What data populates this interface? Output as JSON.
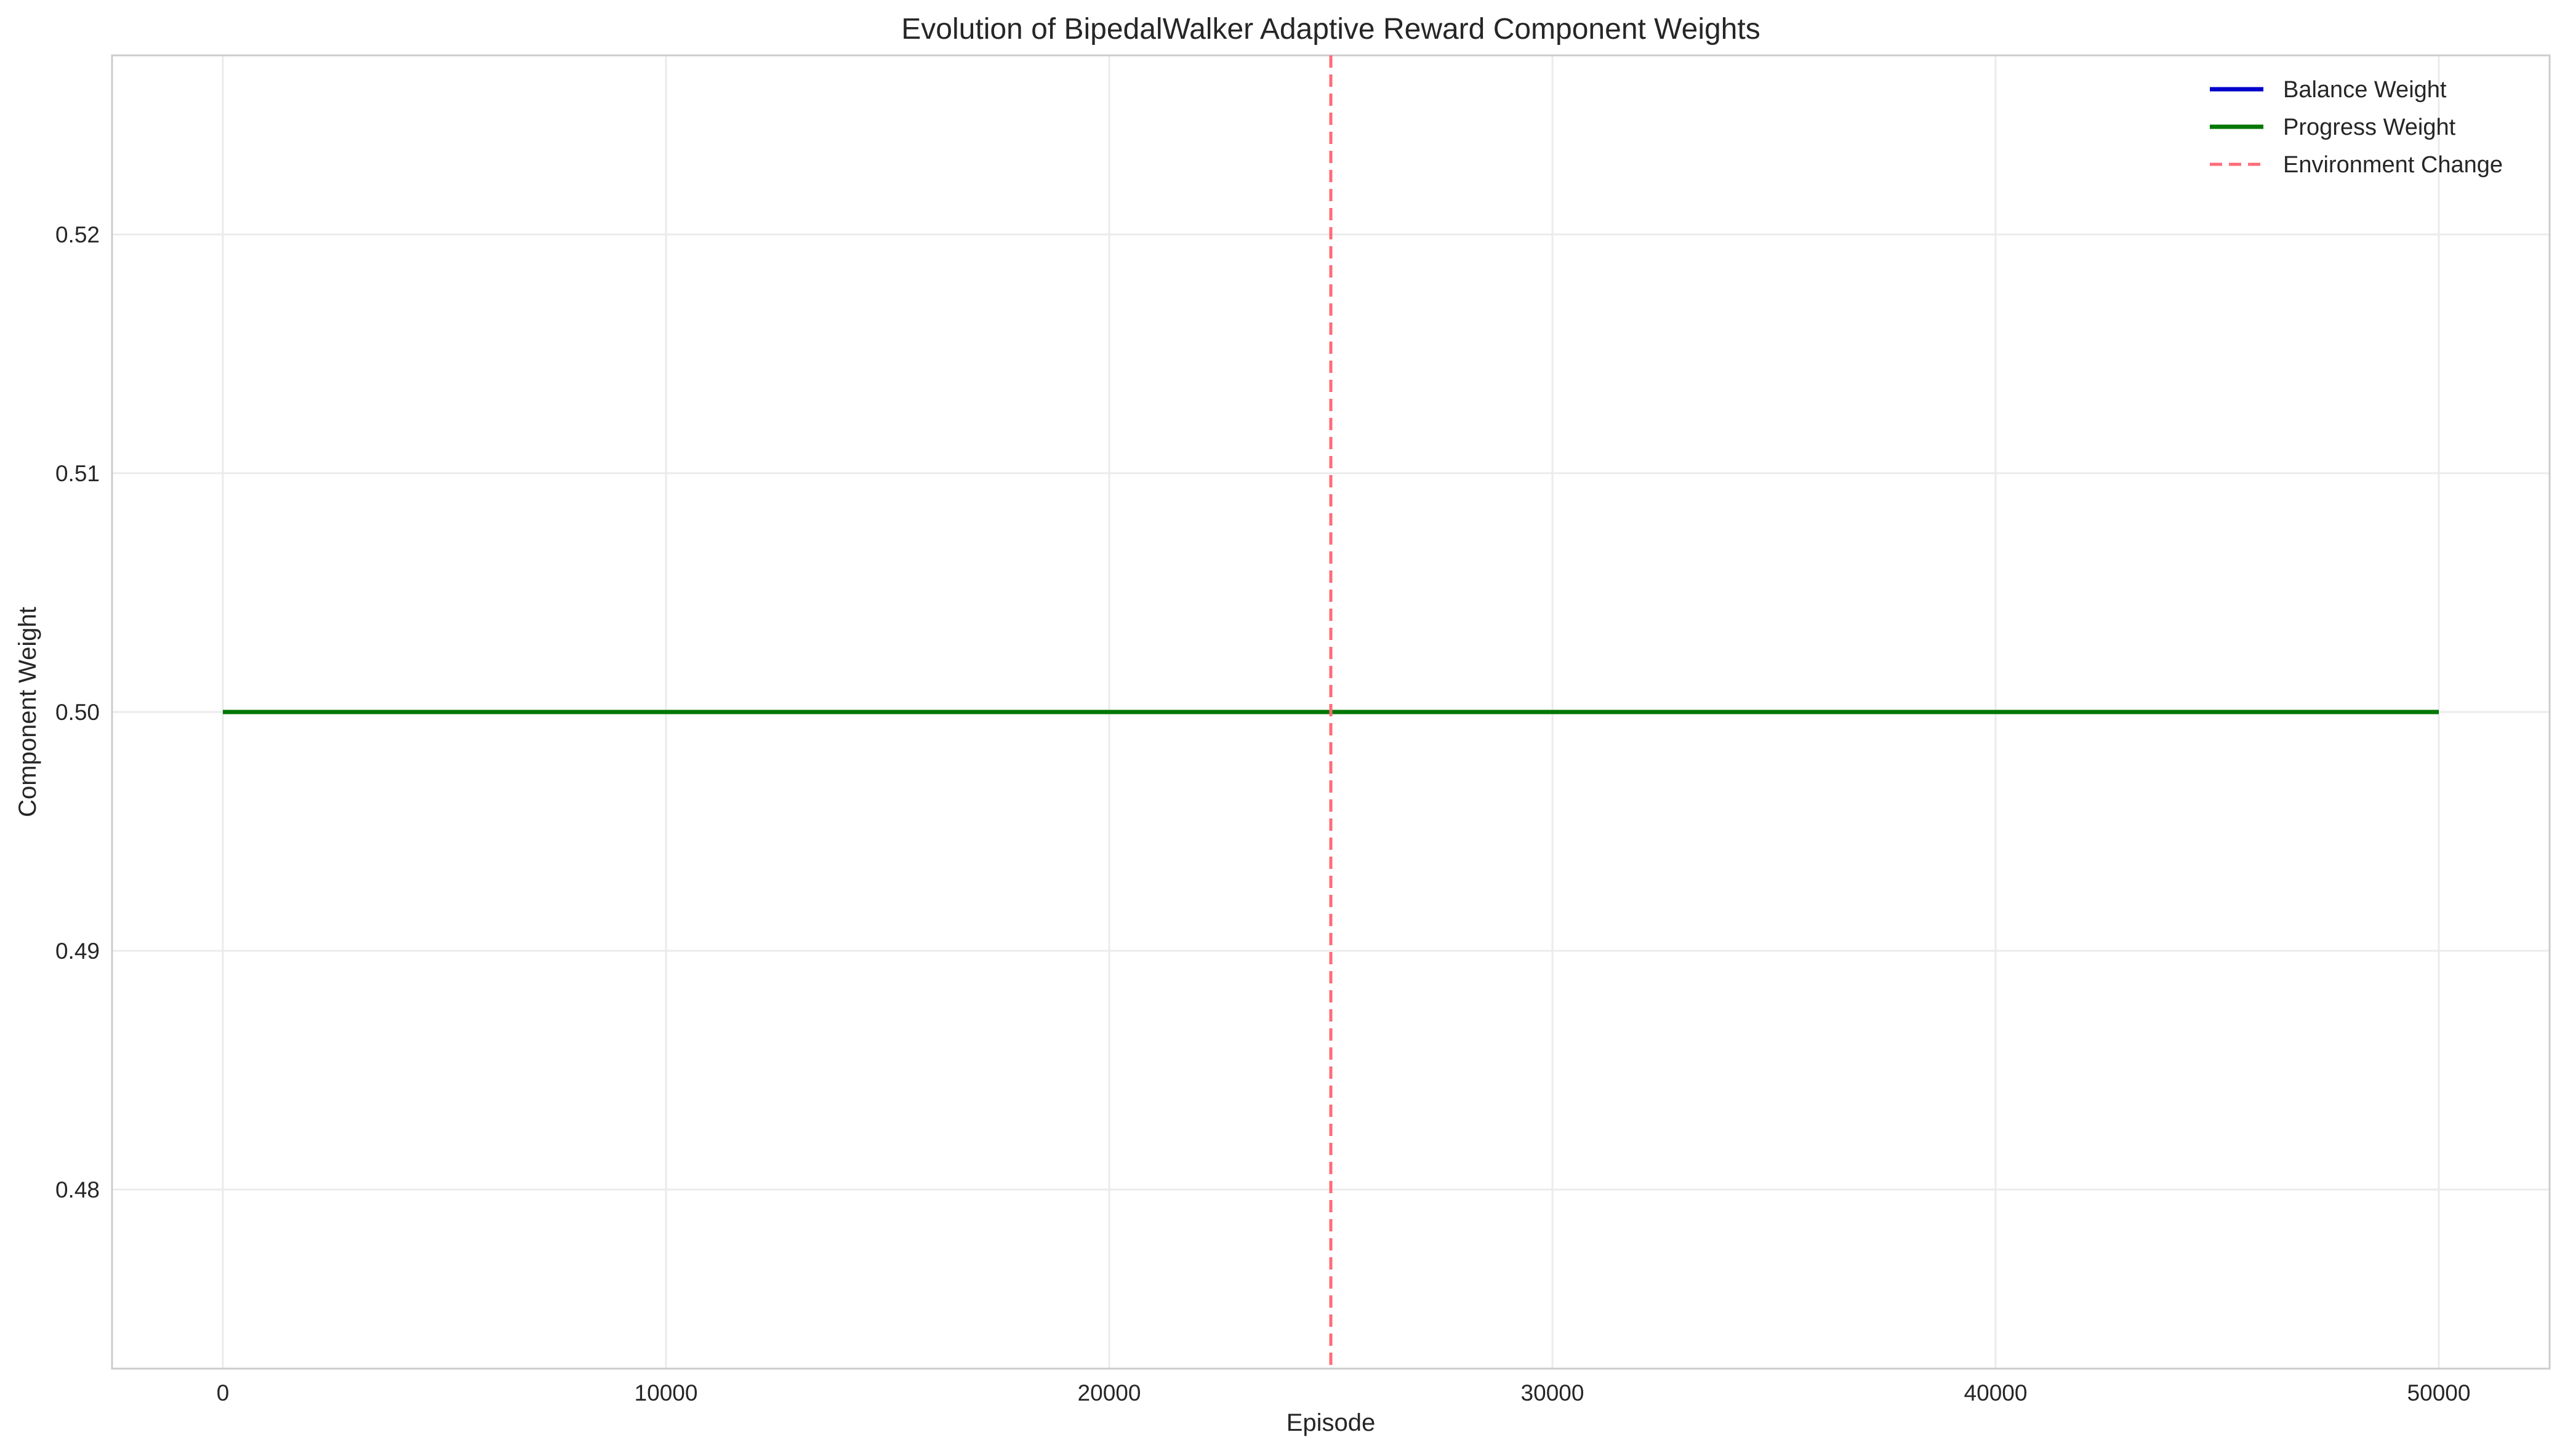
{
  "chart_data": {
    "type": "line",
    "title": "Evolution of BipedalWalker Adaptive Reward Component Weights",
    "xlabel": "Episode",
    "ylabel": "Component Weight",
    "xlim": [
      -2500,
      52500
    ],
    "ylim": [
      0.4725,
      0.5275
    ],
    "x_ticks": [
      0,
      10000,
      20000,
      30000,
      40000,
      50000
    ],
    "y_ticks": [
      0.48,
      0.49,
      0.5,
      0.51,
      0.52
    ],
    "y_tick_labels": [
      "0.48",
      "0.49",
      "0.50",
      "0.51",
      "0.52"
    ],
    "grid": true,
    "legend_position": "top-right",
    "series": [
      {
        "name": "Balance Weight",
        "color": "#0000cc",
        "style": "solid",
        "x": [
          0,
          50000
        ],
        "values": [
          0.5,
          0.5
        ]
      },
      {
        "name": "Progress Weight",
        "color": "#007700",
        "style": "solid",
        "x": [
          0,
          50000
        ],
        "values": [
          0.5,
          0.5
        ]
      }
    ],
    "vlines": [
      {
        "name": "Environment Change",
        "x": 25000,
        "color": "#ff6b78",
        "style": "dashed"
      }
    ]
  }
}
